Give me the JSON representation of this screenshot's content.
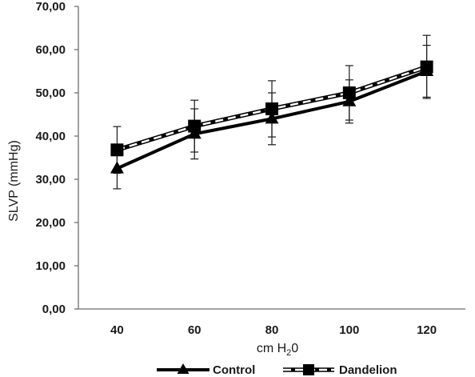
{
  "chart_data": {
    "type": "line",
    "title": "",
    "xlabel": "cm H",
    "xlabel_sub": "2",
    "xlabel_tail": "0",
    "ylabel": "SLVP (mmHg)",
    "ylim": [
      0,
      70
    ],
    "yticks": [
      "0,00",
      "10,00",
      "20,00",
      "30,00",
      "40,00",
      "50,00",
      "60,00",
      "70,00"
    ],
    "categories": [
      "40",
      "60",
      "80",
      "100",
      "120"
    ],
    "grid": false,
    "legend_position": "bottom",
    "series": [
      {
        "name": "Control",
        "marker": "triangle",
        "line_style": "solid",
        "color": "#000000",
        "values": [
          32.5,
          40.5,
          44.0,
          48.0,
          55.0
        ],
        "error": [
          4.7,
          5.8,
          6.0,
          5.0,
          6.0
        ]
      },
      {
        "name": "Dandelion",
        "marker": "square",
        "line_style": "dashed",
        "color": "#000000",
        "values": [
          36.8,
          42.3,
          46.3,
          50.0,
          56.0
        ],
        "error": [
          5.4,
          6.0,
          6.5,
          6.3,
          7.3
        ]
      }
    ]
  }
}
